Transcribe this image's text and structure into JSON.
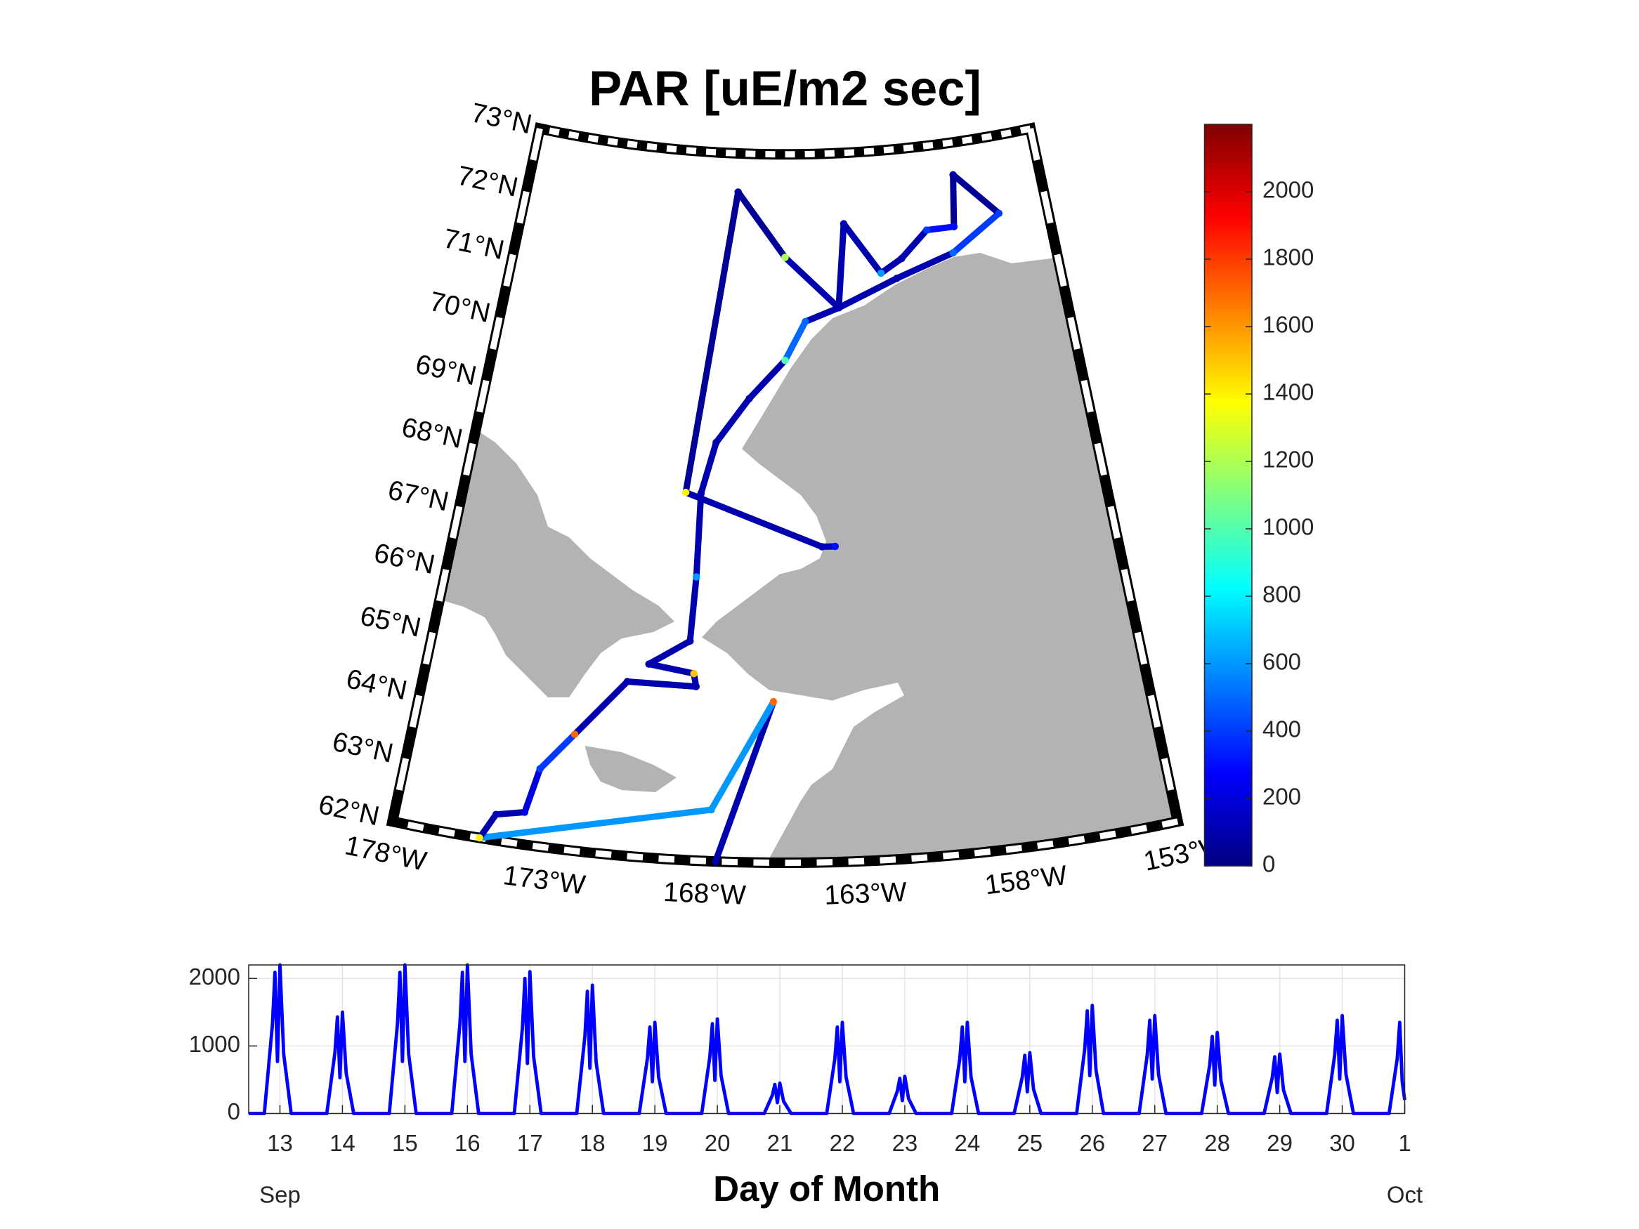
{
  "chart_data": [
    {
      "type": "map",
      "title": "PAR [uE/m2 sec]",
      "projection": "conic",
      "lonlim": [
        -178,
        -153
      ],
      "latlim": [
        62,
        73
      ],
      "lonticks": [
        {
          "value": -178,
          "label": "178°W"
        },
        {
          "value": -173,
          "label": "173°W"
        },
        {
          "value": -168,
          "label": "168°W"
        },
        {
          "value": -163,
          "label": "163°W"
        },
        {
          "value": -158,
          "label": "158°W"
        },
        {
          "value": -153,
          "label": "153°W"
        }
      ],
      "latticks": [
        {
          "value": 62,
          "label": "62°N"
        },
        {
          "value": 63,
          "label": "63°N"
        },
        {
          "value": 64,
          "label": "64°N"
        },
        {
          "value": 65,
          "label": "65°N"
        },
        {
          "value": 66,
          "label": "66°N"
        },
        {
          "value": 67,
          "label": "67°N"
        },
        {
          "value": 68,
          "label": "68°N"
        },
        {
          "value": 69,
          "label": "69°N"
        },
        {
          "value": 70,
          "label": "70°N"
        },
        {
          "value": 71,
          "label": "71°N"
        },
        {
          "value": 72,
          "label": "72°N"
        },
        {
          "value": 73,
          "label": "73°N"
        }
      ],
      "track": {
        "lon": [
          -167.7,
          -165.9,
          -167.9,
          -175.2,
          -174.8,
          -173.9,
          -173.6,
          -172.6,
          -171.0,
          -168.6,
          -168.7,
          -170.3,
          -168.9,
          -168.8,
          -168.8,
          -168.3,
          -167.0,
          -165.5,
          -164.6,
          -163.1,
          -160.4,
          -157.7,
          -155.3,
          -157.2,
          -157.5,
          -158.8,
          -160.1,
          -161.1,
          -162.7,
          -163.1,
          -165.5,
          -167.8,
          -169.4,
          -164.1,
          -163.6
        ],
        "lat": [
          62.0,
          64.5,
          62.8,
          62.0,
          62.4,
          62.5,
          63.2,
          63.8,
          64.7,
          64.7,
          64.9,
          65.0,
          65.4,
          66.4,
          67.7,
          68.5,
          69.2,
          69.8,
          70.4,
          70.6,
          71.0,
          71.3,
          71.8,
          72.5,
          71.7,
          71.7,
          71.3,
          71.1,
          71.9,
          70.6,
          71.4,
          72.4,
          67.7,
          66.9,
          66.9
        ],
        "par": [
          100,
          1700,
          600,
          1400,
          100,
          200,
          400,
          1700,
          100,
          100,
          1500,
          100,
          100,
          600,
          100,
          100,
          100,
          1000,
          500,
          100,
          100,
          500,
          400,
          50,
          300,
          400,
          100,
          600,
          100,
          100,
          1200,
          50,
          1400,
          100,
          300
        ]
      },
      "colormap": "jet",
      "clim": [
        0,
        2200
      ],
      "cticks": [
        0,
        200,
        400,
        600,
        800,
        1000,
        1200,
        1400,
        1600,
        1800,
        2000
      ],
      "land_color": "#b3b3b3"
    },
    {
      "type": "line",
      "xlabel": "Day of Month",
      "month_labels": [
        "Sep",
        "Oct"
      ],
      "xlim": [
        12.5,
        31
      ],
      "xticks": [
        13,
        14,
        15,
        16,
        17,
        18,
        19,
        20,
        21,
        22,
        23,
        24,
        25,
        26,
        27,
        28,
        29,
        30,
        {
          "value": 31,
          "label": "1"
        }
      ],
      "ylim": [
        0,
        2200
      ],
      "yticks": [
        0,
        1000,
        2000
      ],
      "grid": true,
      "color": "#0000ff",
      "x": [
        12.5,
        12.75,
        12.88,
        12.92,
        12.96,
        13,
        13.06,
        13.18,
        13.75,
        13.88,
        13.92,
        13.96,
        14,
        14.06,
        14.18,
        14.75,
        14.88,
        14.92,
        14.96,
        15,
        15.06,
        15.18,
        15.75,
        15.88,
        15.92,
        15.96,
        16,
        16.06,
        16.18,
        16.75,
        16.88,
        16.92,
        16.96,
        17,
        17.06,
        17.18,
        17.75,
        17.88,
        17.92,
        17.96,
        18,
        18.06,
        18.18,
        18.75,
        18.88,
        18.92,
        18.96,
        19,
        19.06,
        19.18,
        19.75,
        19.88,
        19.92,
        19.96,
        20,
        20.06,
        20.18,
        20.75,
        20.88,
        20.92,
        20.96,
        21,
        21.06,
        21.18,
        21.75,
        21.88,
        21.92,
        21.96,
        22,
        22.06,
        22.18,
        22.75,
        22.88,
        22.92,
        22.96,
        23,
        23.06,
        23.18,
        23.75,
        23.88,
        23.92,
        23.96,
        24,
        24.06,
        24.18,
        24.75,
        24.88,
        24.92,
        24.96,
        25,
        25.06,
        25.18,
        25.75,
        25.88,
        25.92,
        25.96,
        26,
        26.06,
        26.18,
        26.75,
        26.88,
        26.92,
        26.96,
        27,
        27.06,
        27.18,
        27.75,
        27.88,
        27.92,
        27.96,
        28,
        28.06,
        28.18,
        28.75,
        28.88,
        28.92,
        28.96,
        29,
        29.06,
        29.18,
        29.75,
        29.88,
        29.92,
        29.96,
        30,
        30.06,
        30.18,
        30.75,
        30.88,
        30.92,
        30.96,
        31
      ],
      "values": [
        0,
        0,
        1320,
        2090,
        770,
        2200,
        880,
        0,
        0,
        900,
        1430,
        530,
        1500,
        600,
        0,
        0,
        1320,
        2090,
        770,
        2200,
        880,
        0,
        0,
        1320,
        2090,
        770,
        2200,
        880,
        0,
        0,
        1260,
        2000,
        740,
        2100,
        840,
        0,
        0,
        1140,
        1810,
        670,
        1900,
        760,
        0,
        0,
        810,
        1280,
        470,
        1350,
        540,
        0,
        0,
        840,
        1330,
        490,
        1400,
        560,
        0,
        0,
        270,
        430,
        160,
        450,
        180,
        0,
        0,
        810,
        1280,
        470,
        1350,
        540,
        0,
        0,
        330,
        520,
        190,
        550,
        220,
        0,
        0,
        810,
        1280,
        470,
        1350,
        540,
        0,
        0,
        540,
        860,
        320,
        900,
        360,
        0,
        0,
        960,
        1520,
        560,
        1600,
        640,
        0,
        0,
        870,
        1380,
        510,
        1450,
        580,
        0,
        0,
        720,
        1140,
        420,
        1200,
        480,
        0,
        0,
        530,
        840,
        310,
        880,
        350,
        0,
        0,
        870,
        1380,
        510,
        1450,
        580,
        0,
        0,
        810,
        1350,
        470,
        200
      ]
    }
  ]
}
